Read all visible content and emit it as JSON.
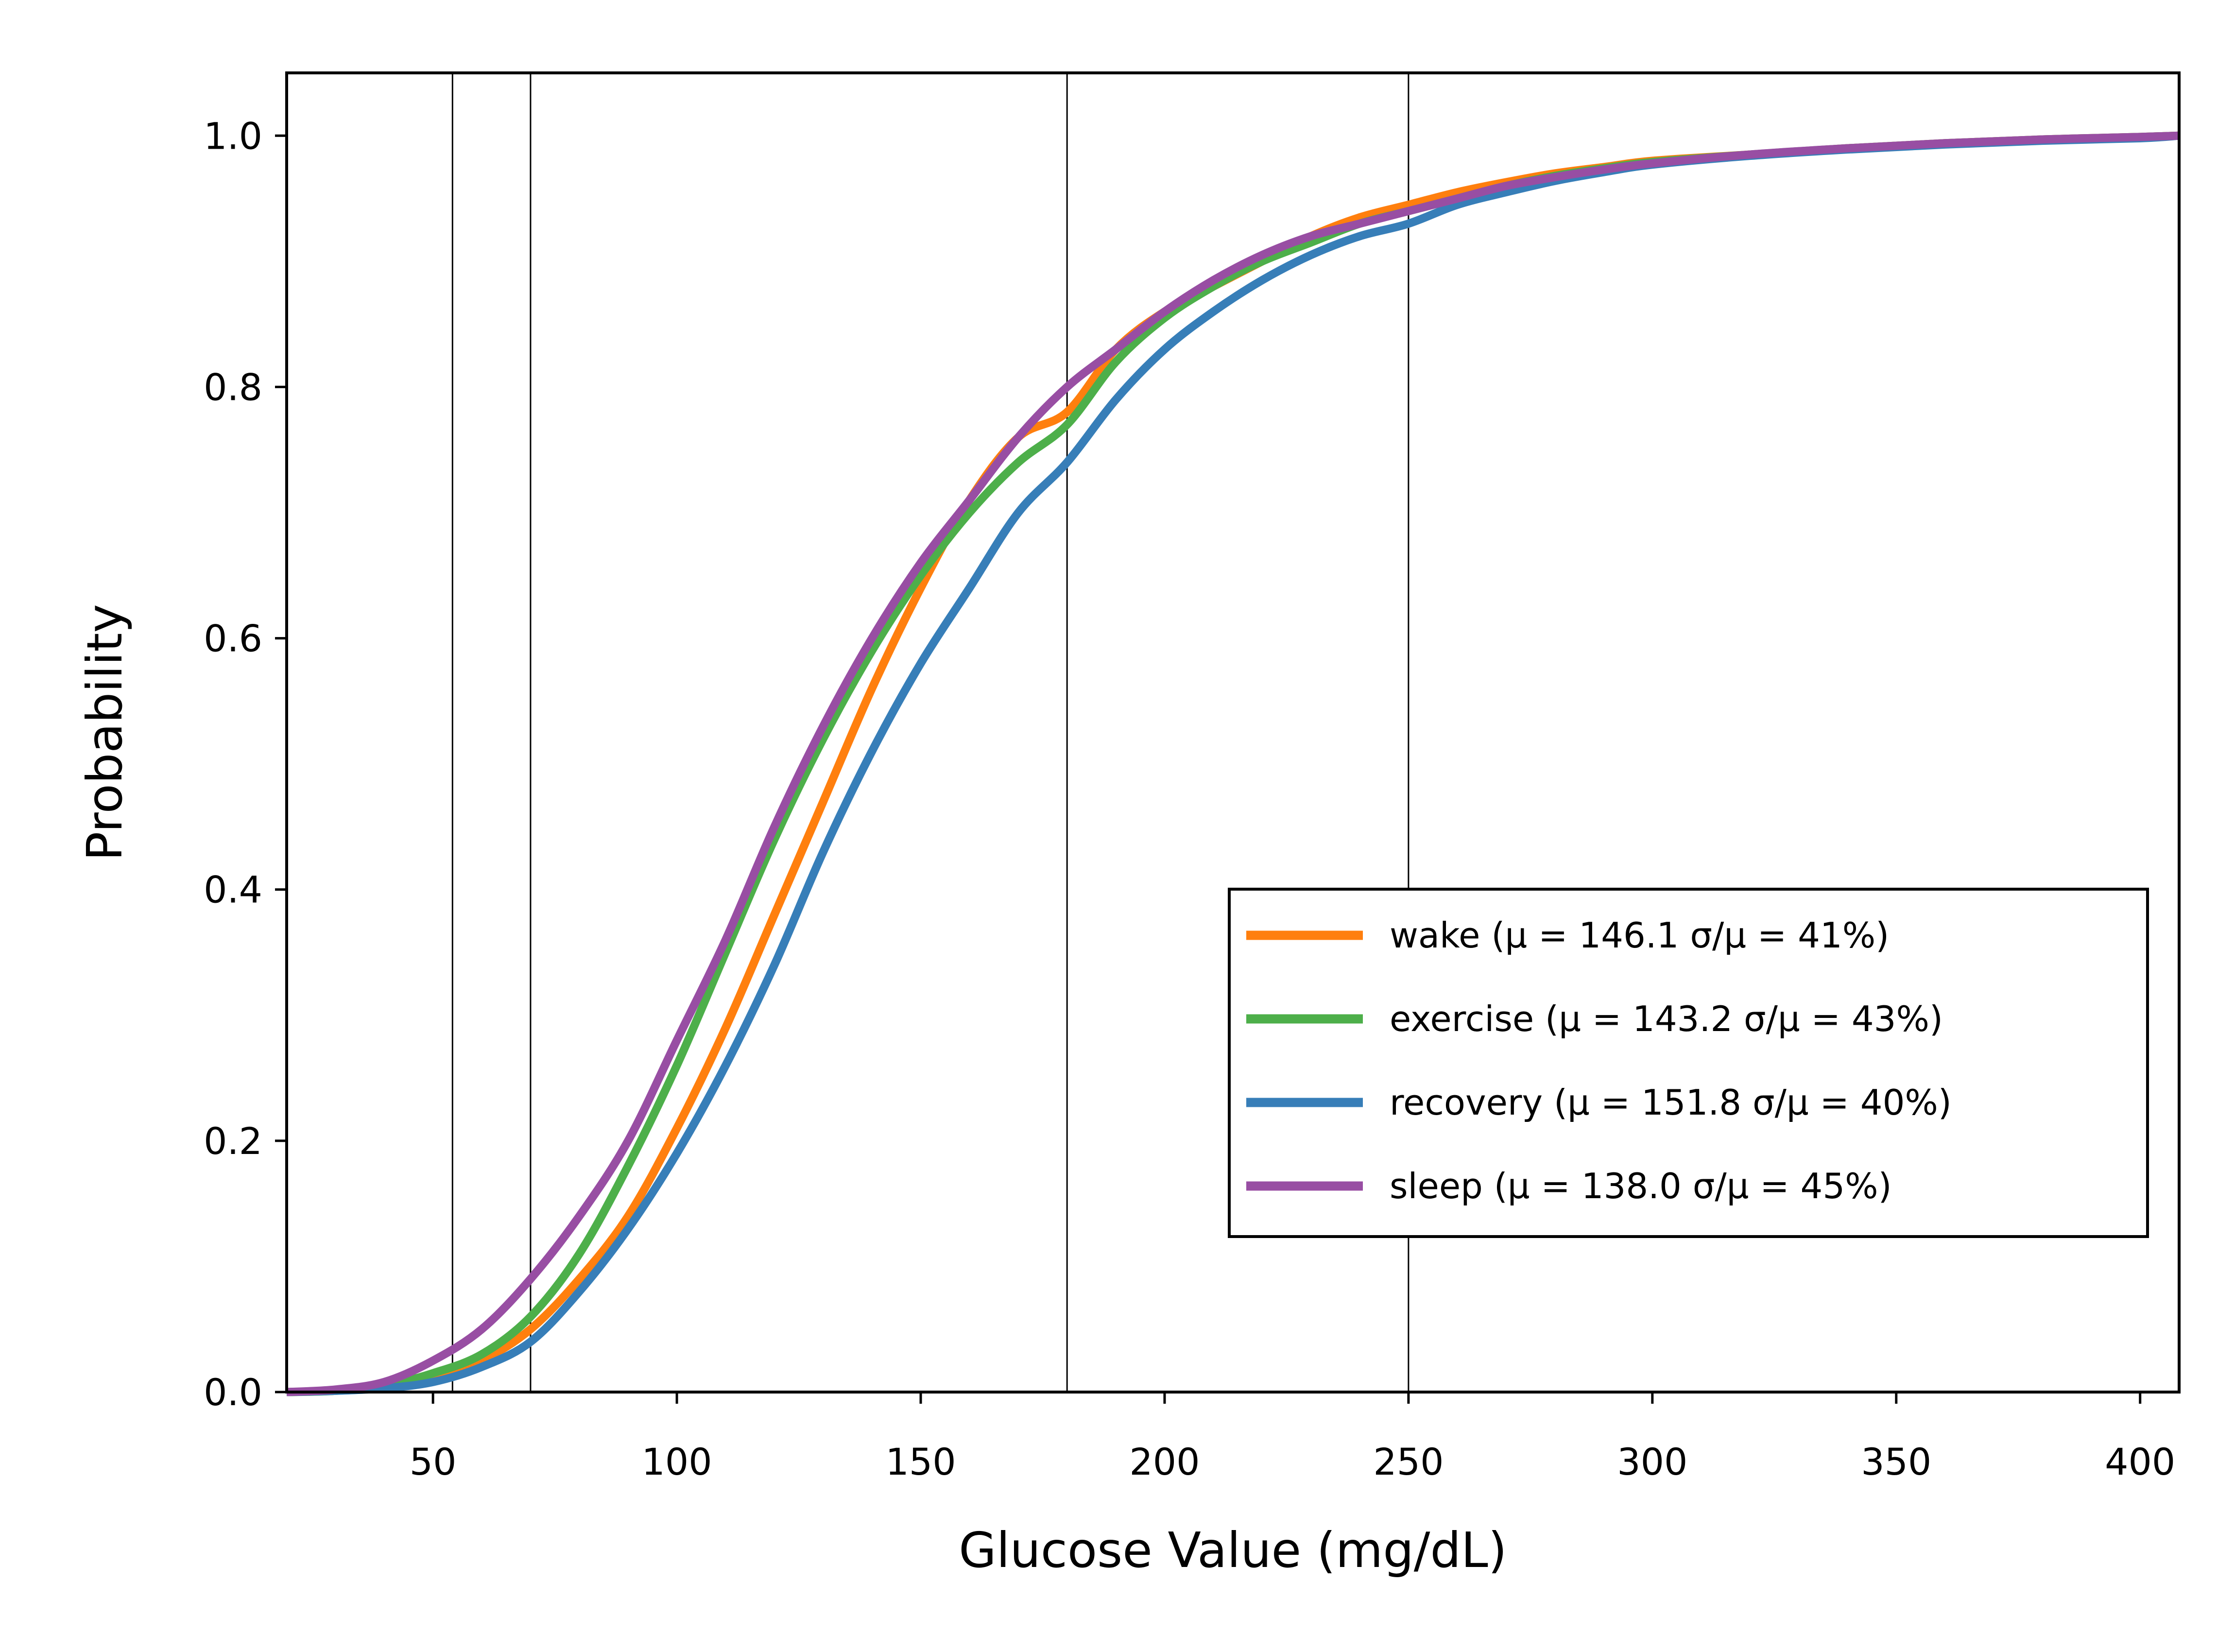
{
  "chart_data": {
    "type": "line",
    "xlabel": "Glucose Value (mg/dL)",
    "ylabel": "Probability",
    "xlim": [
      20,
      408
    ],
    "ylim": [
      0,
      1.05
    ],
    "xticks": [
      50,
      100,
      150,
      200,
      250,
      300,
      350,
      400
    ],
    "yticks": [
      0.0,
      0.2,
      0.4,
      0.6,
      0.8,
      1.0
    ],
    "xtick_labels": [
      "50",
      "100",
      "150",
      "200",
      "250",
      "300",
      "350",
      "400"
    ],
    "ytick_labels": [
      "0.0",
      "0.2",
      "0.4",
      "0.6",
      "0.8",
      "1.0"
    ],
    "vlines": [
      54,
      70,
      180,
      250
    ],
    "grid": false,
    "legend_position": "lower-right",
    "series": [
      {
        "name": "wake",
        "legend": "wake (μ = 146.1 σ/μ = 41%)",
        "color": "#ff7f0e",
        "x": [
          20,
          30,
          40,
          50,
          60,
          70,
          80,
          90,
          100,
          110,
          120,
          130,
          140,
          150,
          160,
          170,
          180,
          190,
          200,
          210,
          220,
          230,
          240,
          250,
          260,
          270,
          280,
          290,
          300,
          320,
          340,
          360,
          380,
          400,
          408
        ],
        "y": [
          0.0,
          0.001,
          0.004,
          0.01,
          0.025,
          0.05,
          0.09,
          0.14,
          0.21,
          0.29,
          0.38,
          0.47,
          0.56,
          0.64,
          0.71,
          0.76,
          0.78,
          0.83,
          0.86,
          0.88,
          0.9,
          0.92,
          0.935,
          0.945,
          0.955,
          0.963,
          0.97,
          0.975,
          0.98,
          0.985,
          0.99,
          0.994,
          0.997,
          0.999,
          1.0
        ]
      },
      {
        "name": "exercise",
        "legend": "exercise (μ = 143.2 σ/μ = 43%)",
        "color": "#4daf4a",
        "x": [
          20,
          30,
          40,
          50,
          60,
          70,
          80,
          90,
          100,
          110,
          120,
          130,
          140,
          150,
          160,
          170,
          180,
          190,
          200,
          210,
          220,
          230,
          240,
          250,
          260,
          270,
          280,
          290,
          300,
          320,
          340,
          360,
          380,
          400,
          408
        ],
        "y": [
          0.0,
          0.001,
          0.005,
          0.015,
          0.03,
          0.06,
          0.11,
          0.18,
          0.26,
          0.35,
          0.44,
          0.52,
          0.59,
          0.65,
          0.7,
          0.74,
          0.77,
          0.82,
          0.855,
          0.88,
          0.9,
          0.915,
          0.93,
          0.94,
          0.95,
          0.96,
          0.968,
          0.974,
          0.979,
          0.985,
          0.99,
          0.994,
          0.997,
          0.999,
          1.0
        ]
      },
      {
        "name": "recovery",
        "legend": "recovery (μ = 151.8 σ/μ = 40%)",
        "color": "#377eb8",
        "x": [
          20,
          30,
          40,
          50,
          60,
          70,
          80,
          90,
          100,
          110,
          120,
          130,
          140,
          150,
          160,
          170,
          180,
          190,
          200,
          210,
          220,
          230,
          240,
          250,
          260,
          270,
          280,
          290,
          300,
          320,
          340,
          360,
          380,
          400,
          408
        ],
        "y": [
          0.0,
          0.001,
          0.003,
          0.008,
          0.02,
          0.04,
          0.08,
          0.13,
          0.19,
          0.26,
          0.34,
          0.43,
          0.51,
          0.58,
          0.64,
          0.7,
          0.74,
          0.79,
          0.83,
          0.86,
          0.885,
          0.905,
          0.92,
          0.93,
          0.945,
          0.955,
          0.964,
          0.971,
          0.977,
          0.984,
          0.989,
          0.993,
          0.996,
          0.998,
          1.0
        ]
      },
      {
        "name": "sleep",
        "legend": "sleep (μ = 138.0 σ/μ = 45%)",
        "color": "#984ea3",
        "x": [
          20,
          30,
          40,
          50,
          60,
          70,
          80,
          90,
          100,
          110,
          120,
          130,
          140,
          150,
          160,
          170,
          180,
          190,
          200,
          210,
          220,
          230,
          240,
          250,
          260,
          270,
          280,
          290,
          300,
          320,
          340,
          360,
          380,
          400,
          408
        ],
        "y": [
          0.0,
          0.002,
          0.008,
          0.025,
          0.05,
          0.09,
          0.14,
          0.2,
          0.28,
          0.36,
          0.45,
          0.53,
          0.6,
          0.66,
          0.71,
          0.76,
          0.8,
          0.83,
          0.86,
          0.885,
          0.905,
          0.92,
          0.93,
          0.94,
          0.95,
          0.96,
          0.967,
          0.973,
          0.978,
          0.985,
          0.99,
          0.994,
          0.997,
          0.999,
          1.0
        ]
      }
    ]
  }
}
